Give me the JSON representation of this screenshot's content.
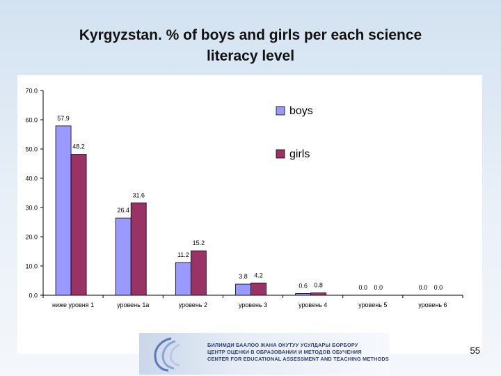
{
  "slide": {
    "title_line1": "Kyrgyzstan. % of boys and girls per each science",
    "title_line2": "literacy level",
    "page_number": "55"
  },
  "footer": {
    "line1": "БИЛИМДИ БААЛОО ЖАНА ОКУТУУ УСУЛДАРЫ БОРБОРУ",
    "line2": "ЦЕНТР ОЦЕНКИ В ОБРАЗОВАНИИ И МЕТОДОВ ОБУЧЕНИЯ",
    "line3": "CENTER FOR EDUCATIONAL ASSESSMENT AND TEACHING METHODS"
  },
  "colors": {
    "boys": "#9999ff",
    "girls": "#993366",
    "background": "#dfe9f3"
  },
  "chart_data": {
    "type": "bar",
    "title": "",
    "xlabel": "",
    "ylabel": "",
    "categories": [
      "ниже уровня 1",
      "уровень 1а",
      "уровень 2",
      "уровень 3",
      "уровень 4",
      "уровень 5",
      "уровень 6"
    ],
    "series": [
      {
        "name": "boys",
        "values": [
          57.9,
          26.4,
          11.2,
          3.8,
          0.6,
          0.0,
          0.0
        ],
        "labels": [
          "57.9",
          "26.4",
          "11.2",
          "3.8",
          "0.6",
          "0.0",
          "0.0"
        ]
      },
      {
        "name": "girls",
        "values": [
          48.2,
          31.6,
          15.2,
          4.2,
          0.8,
          0.0,
          0.0
        ],
        "labels": [
          "48.2",
          "31.6",
          "15.2",
          "4.2",
          "0.8",
          "0.0",
          "0.0"
        ]
      }
    ],
    "ylim": [
      0,
      70
    ],
    "yticks": [
      "0.0",
      "10.0",
      "20.0",
      "30.0",
      "40.0",
      "50.0",
      "60.0",
      "70.0"
    ],
    "grid": false,
    "legend_position": "top-right"
  }
}
